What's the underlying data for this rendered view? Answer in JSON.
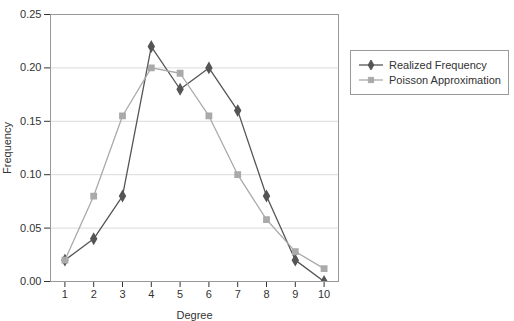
{
  "chart_data": {
    "type": "line",
    "xlabel": "Degree",
    "ylabel": "Frequency",
    "x": [
      1,
      2,
      3,
      4,
      5,
      6,
      7,
      8,
      9,
      10
    ],
    "series": [
      {
        "name": "Realized Frequency",
        "color": "#555555",
        "marker": "diamond",
        "values": [
          0.02,
          0.04,
          0.08,
          0.22,
          0.18,
          0.2,
          0.16,
          0.08,
          0.02,
          0.0
        ]
      },
      {
        "name": "Poisson Approximation",
        "color": "#aaaaaa",
        "marker": "square",
        "values": [
          0.02,
          0.08,
          0.155,
          0.2,
          0.195,
          0.155,
          0.1,
          0.058,
          0.028,
          0.012
        ]
      }
    ],
    "xlim": [
      0.5,
      10.5
    ],
    "ylim": [
      0,
      0.25
    ],
    "xticks": [
      1,
      2,
      3,
      4,
      5,
      6,
      7,
      8,
      9,
      10
    ],
    "yticks": [
      {
        "value": 0,
        "label": "0.00"
      },
      {
        "value": 0.05,
        "label": "0.05"
      },
      {
        "value": 0.1,
        "label": "0.10"
      },
      {
        "value": 0.15,
        "label": "0.15"
      },
      {
        "value": 0.2,
        "label": "0.20"
      },
      {
        "value": 0.25,
        "label": "0.25"
      }
    ],
    "grid": true,
    "legend": "right"
  }
}
